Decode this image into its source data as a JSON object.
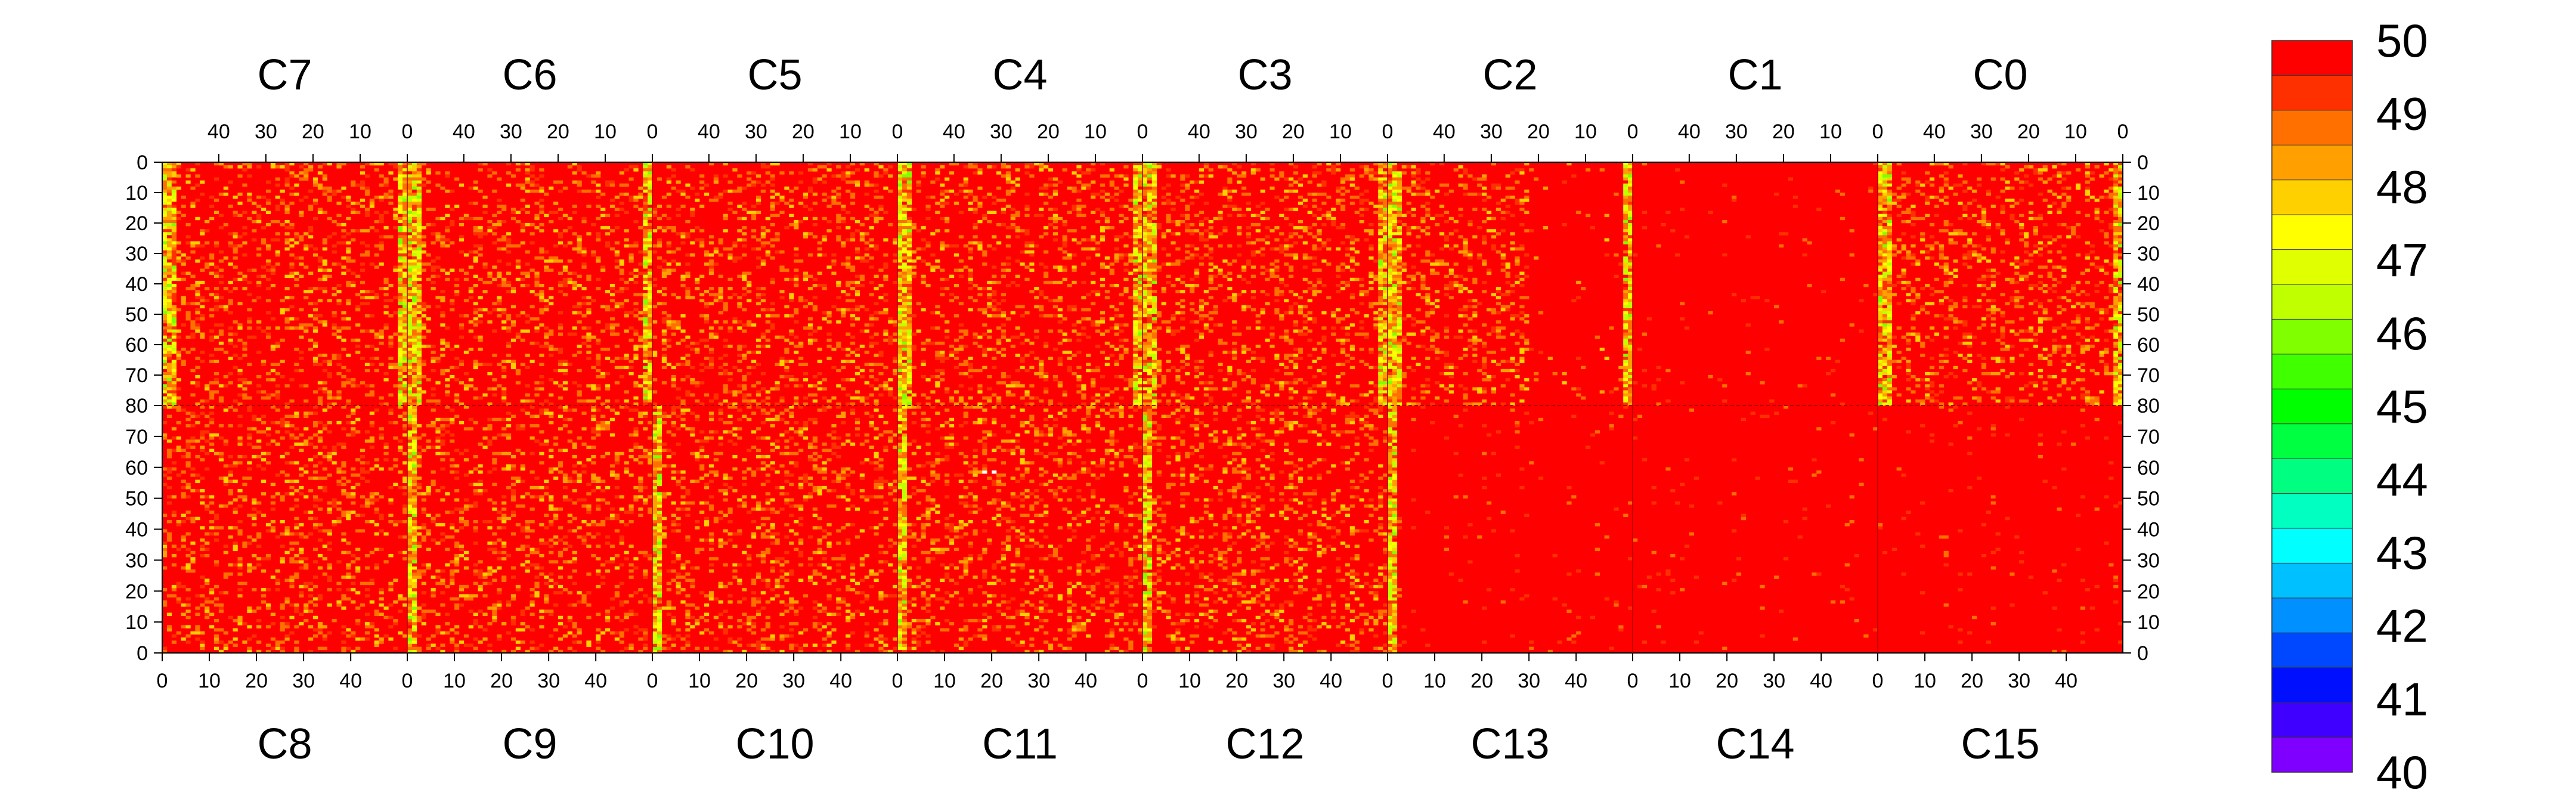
{
  "chart_data": {
    "type": "heatmap",
    "title": "",
    "top_chips": [
      "C7",
      "C6",
      "C5",
      "C4",
      "C3",
      "C2",
      "C1",
      "C0"
    ],
    "bottom_chips": [
      "C8",
      "C9",
      "C10",
      "C11",
      "C12",
      "C13",
      "C14",
      "C15"
    ],
    "columns_per_chip": 52,
    "rows_per_half": 80,
    "top_x_ticks": [
      "40",
      "30",
      "20",
      "10",
      "0"
    ],
    "top_x_tick_values": [
      40,
      30,
      20,
      10,
      0
    ],
    "bottom_x_ticks": [
      "0",
      "10",
      "20",
      "30",
      "40"
    ],
    "bottom_x_tick_values": [
      0,
      10,
      20,
      30,
      40
    ],
    "y_ticks_top": [
      "0",
      "10",
      "20",
      "30",
      "40",
      "50",
      "60",
      "70",
      "80"
    ],
    "y_ticks_top_values": [
      0,
      10,
      20,
      30,
      40,
      50,
      60,
      70,
      80
    ],
    "y_ticks_bottom": [
      "70",
      "60",
      "50",
      "40",
      "30",
      "20",
      "10",
      "0"
    ],
    "y_ticks_bottom_values": [
      70,
      60,
      50,
      40,
      30,
      20,
      10,
      0
    ],
    "zlim": [
      40,
      50
    ],
    "z_ticks": [
      "50",
      "49",
      "48",
      "47",
      "46",
      "45",
      "44",
      "43",
      "42",
      "41",
      "40"
    ],
    "z_tick_values": [
      50,
      49,
      48,
      47,
      46,
      45,
      44,
      43,
      42,
      41,
      40
    ],
    "color_scale": [
      "#7f00ff",
      "#4000ff",
      "#0010ff",
      "#0048ff",
      "#0090ff",
      "#00c0ff",
      "#00ffff",
      "#00ffc0",
      "#00ff80",
      "#00ff40",
      "#00ff00",
      "#40ff00",
      "#80ff00",
      "#c0ff00",
      "#e0ff00",
      "#ffff00",
      "#ffd000",
      "#ffa000",
      "#ff7000",
      "#ff3000",
      "#ff0000"
    ],
    "hot_columns": {
      "top": [
        {
          "chip": "C7",
          "column": 0
        },
        {
          "chip": "C6",
          "column": 0
        },
        {
          "chip": "C4",
          "column": 0
        },
        {
          "chip": "C3",
          "column": 0
        },
        {
          "chip": "C2",
          "column": 0
        },
        {
          "chip": "C0",
          "column": 0
        }
      ],
      "bottom": [
        {
          "chip": "C9",
          "column": 0
        },
        {
          "chip": "C10",
          "column": 0
        },
        {
          "chip": "C11",
          "column": 0
        },
        {
          "chip": "C12",
          "column": 0
        },
        {
          "chip": "C13",
          "column": 0
        }
      ]
    },
    "typical_value": 50,
    "hot_column_value_range": [
      46,
      49
    ],
    "empty_pixels": [
      {
        "chip": "C11",
        "column": 18,
        "row": 58
      },
      {
        "chip": "C11",
        "column": 20,
        "row": 58
      }
    ]
  }
}
